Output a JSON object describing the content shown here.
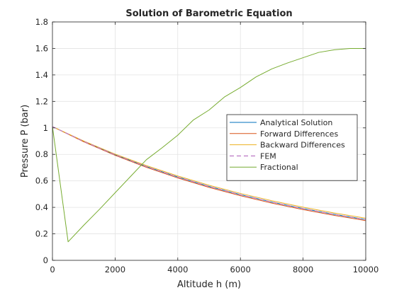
{
  "chart_data": {
    "type": "line",
    "title": "Solution of Barometric Equation",
    "xlabel": "Altitude h (m)",
    "ylabel": "Pressure P (bar)",
    "xlim": [
      0,
      10000
    ],
    "ylim": [
      0,
      1.8
    ],
    "xticks": [
      "0",
      "2000",
      "4000",
      "6000",
      "8000",
      "10000"
    ],
    "yticks": [
      "0",
      "0.2",
      "0.4",
      "0.6",
      "0.8",
      "1",
      "1.2",
      "1.4",
      "1.6",
      "1.8"
    ],
    "grid": true,
    "legend_position": "right",
    "series": [
      {
        "name": "Analytical Solution",
        "color": "#0072BD",
        "style": "solid",
        "x": [
          0,
          1000,
          2000,
          3000,
          4000,
          5000,
          6000,
          7000,
          8000,
          9000,
          10000
        ],
        "y": [
          1.01,
          0.898,
          0.797,
          0.708,
          0.629,
          0.558,
          0.496,
          0.44,
          0.391,
          0.347,
          0.308
        ]
      },
      {
        "name": "Forward Differences",
        "color": "#D95319",
        "style": "solid",
        "x": [
          0,
          1000,
          2000,
          3000,
          4000,
          5000,
          6000,
          7000,
          8000,
          9000,
          10000
        ],
        "y": [
          1.01,
          0.895,
          0.793,
          0.702,
          0.622,
          0.551,
          0.488,
          0.432,
          0.383,
          0.339,
          0.3
        ]
      },
      {
        "name": "Backward Differences",
        "color": "#EDB120",
        "style": "solid",
        "x": [
          0,
          1000,
          2000,
          3000,
          4000,
          5000,
          6000,
          7000,
          8000,
          9000,
          10000
        ],
        "y": [
          1.01,
          0.901,
          0.802,
          0.715,
          0.637,
          0.567,
          0.505,
          0.45,
          0.401,
          0.357,
          0.318
        ]
      },
      {
        "name": "FEM",
        "color": "#C080C8",
        "style": "dashed",
        "x": [
          0,
          1000,
          2000,
          3000,
          4000,
          5000,
          6000,
          7000,
          8000,
          9000,
          10000
        ],
        "y": [
          1.01,
          0.898,
          0.797,
          0.708,
          0.629,
          0.558,
          0.496,
          0.44,
          0.391,
          0.347,
          0.308
        ]
      },
      {
        "name": "Fractional",
        "color": "#77AC30",
        "style": "solid",
        "x": [
          0,
          500,
          1000,
          1500,
          2000,
          2500,
          3000,
          3500,
          4000,
          4500,
          5000,
          5500,
          6000,
          6500,
          7000,
          7500,
          8000,
          8500,
          9000,
          9500,
          10000
        ],
        "y": [
          1.01,
          0.14,
          0.265,
          0.385,
          0.51,
          0.635,
          0.76,
          0.85,
          0.945,
          1.06,
          1.135,
          1.235,
          1.305,
          1.385,
          1.445,
          1.49,
          1.53,
          1.57,
          1.59,
          1.6,
          1.6
        ]
      }
    ]
  }
}
